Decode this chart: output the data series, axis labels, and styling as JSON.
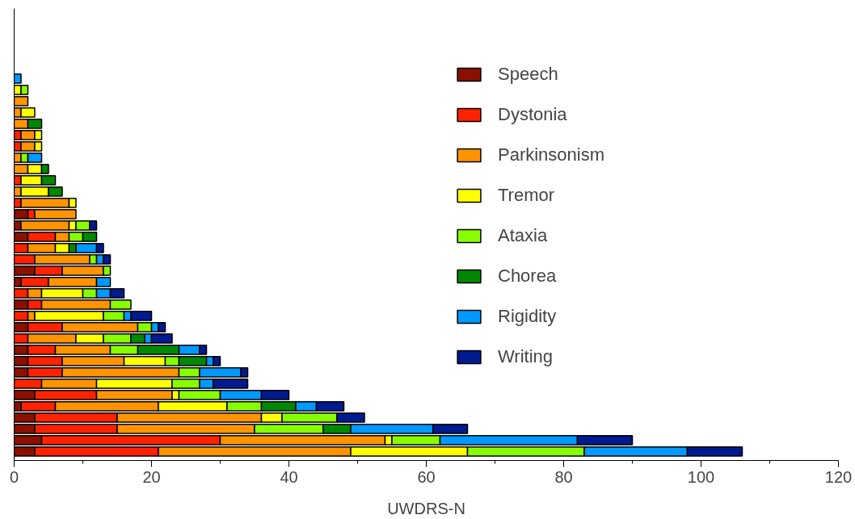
{
  "chart_data": {
    "type": "bar",
    "orientation": "horizontal",
    "stacked": true,
    "xlabel": "UWDRS-N",
    "xlim": [
      0,
      120
    ],
    "xticks": [
      0,
      20,
      40,
      60,
      80,
      100,
      120
    ],
    "grid": false,
    "legend": "top right",
    "tick_labels": "x",
    "categories": [
      null,
      null,
      null,
      null,
      null,
      null,
      null,
      null,
      null,
      null,
      null,
      null,
      null,
      null,
      null,
      null,
      null,
      null,
      null,
      null,
      null,
      null,
      null,
      null,
      null,
      null,
      null,
      null,
      null,
      null,
      null,
      null,
      null,
      null
    ],
    "series": [
      {
        "name": "Speech",
        "color": "#8b1000",
        "values": [
          null,
          null,
          null,
          null,
          null,
          null,
          null,
          null,
          null,
          null,
          null,
          null,
          2,
          1,
          2,
          null,
          null,
          3,
          1,
          null,
          2,
          null,
          2,
          null,
          2,
          2,
          2,
          null,
          3,
          1,
          3,
          3,
          4,
          3
        ]
      },
      {
        "name": "Dystonia",
        "color": "#ff2200",
        "values": [
          null,
          null,
          null,
          null,
          null,
          1,
          1,
          null,
          null,
          1,
          null,
          1,
          1,
          null,
          4,
          2,
          3,
          4,
          4,
          2,
          2,
          2,
          5,
          2,
          4,
          5,
          5,
          4,
          9,
          5,
          12,
          12,
          26,
          18
        ]
      },
      {
        "name": "Parkinsonism",
        "color": "#ff9400",
        "values": [
          null,
          null,
          2,
          1,
          2,
          2,
          2,
          1,
          2,
          null,
          1,
          7,
          6,
          7,
          2,
          4,
          8,
          6,
          7,
          2,
          10,
          1,
          11,
          7,
          8,
          9,
          17,
          8,
          11,
          15,
          21,
          20,
          24,
          28
        ]
      },
      {
        "name": "Tremor",
        "color": "#ffff00",
        "values": [
          null,
          1,
          null,
          2,
          null,
          1,
          1,
          null,
          2,
          3,
          4,
          1,
          null,
          1,
          null,
          2,
          null,
          null,
          null,
          6,
          null,
          10,
          null,
          4,
          null,
          6,
          null,
          11,
          1,
          10,
          3,
          null,
          1,
          17
        ]
      },
      {
        "name": "Ataxia",
        "color": "#88ff00",
        "values": [
          null,
          1,
          null,
          null,
          null,
          null,
          null,
          1,
          null,
          null,
          null,
          null,
          null,
          2,
          2,
          null,
          1,
          1,
          null,
          2,
          3,
          3,
          2,
          4,
          4,
          2,
          3,
          4,
          6,
          5,
          8,
          10,
          7,
          17
        ]
      },
      {
        "name": "Chorea",
        "color": "#008800",
        "values": [
          null,
          null,
          null,
          null,
          2,
          null,
          null,
          null,
          1,
          2,
          2,
          null,
          null,
          null,
          2,
          1,
          null,
          null,
          null,
          null,
          null,
          null,
          null,
          2,
          6,
          4,
          null,
          null,
          null,
          5,
          null,
          4,
          null,
          null
        ]
      },
      {
        "name": "Rigidity",
        "color": "#0099ff",
        "values": [
          1,
          null,
          null,
          null,
          null,
          null,
          null,
          2,
          null,
          null,
          null,
          null,
          null,
          null,
          null,
          3,
          1,
          null,
          2,
          2,
          null,
          1,
          1,
          1,
          3,
          1,
          6,
          2,
          6,
          3,
          null,
          12,
          20,
          15
        ]
      },
      {
        "name": "Writing",
        "color": "#001a8f",
        "values": [
          null,
          null,
          null,
          null,
          null,
          null,
          null,
          null,
          null,
          null,
          null,
          null,
          null,
          1,
          null,
          1,
          1,
          null,
          null,
          2,
          null,
          3,
          1,
          3,
          1,
          1,
          1,
          5,
          4,
          4,
          4,
          5,
          8,
          8
        ]
      }
    ]
  }
}
